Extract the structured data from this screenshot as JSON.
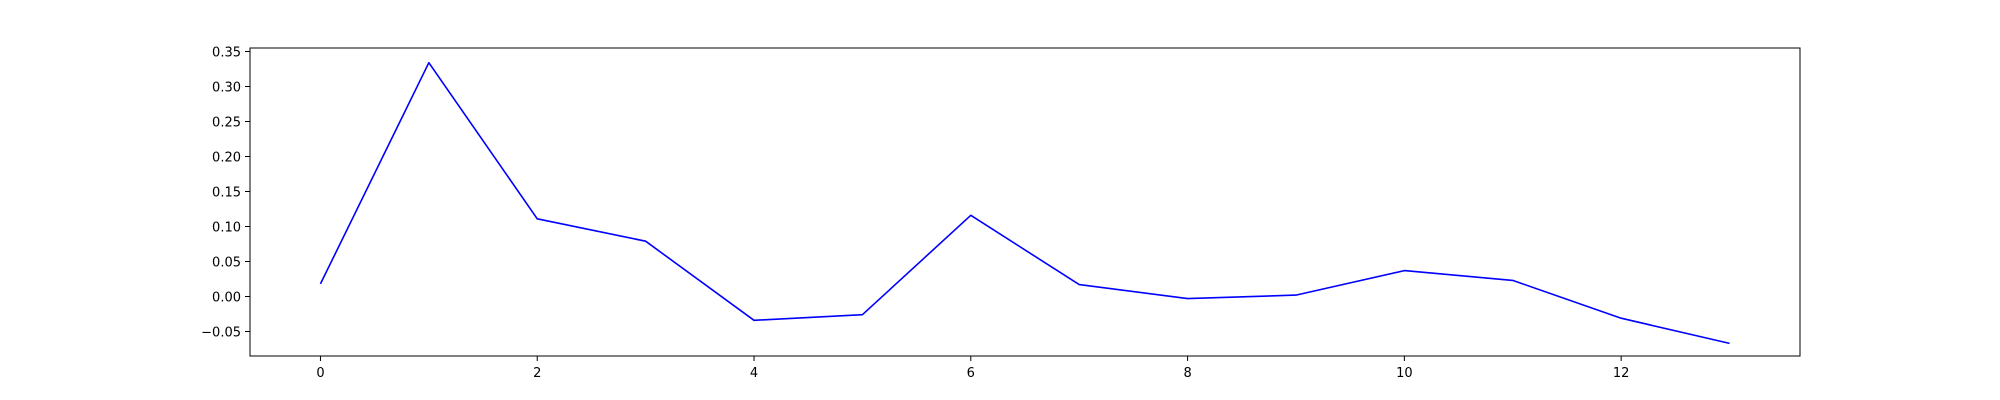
{
  "chart_data": {
    "type": "line",
    "title": "",
    "xlabel": "",
    "ylabel": "",
    "xlim": [
      -0.65,
      13.65
    ],
    "ylim": [
      -0.085,
      0.355
    ],
    "xticks": [
      0,
      2,
      4,
      6,
      8,
      10,
      12
    ],
    "xtick_labels": [
      "0",
      "2",
      "4",
      "6",
      "8",
      "10",
      "12"
    ],
    "yticks": [
      -0.05,
      0.0,
      0.05,
      0.1,
      0.15,
      0.2,
      0.25,
      0.3,
      0.35
    ],
    "ytick_labels": [
      "−0.05",
      "0.00",
      "0.05",
      "0.10",
      "0.15",
      "0.20",
      "0.25",
      "0.30",
      "0.35"
    ],
    "grid": false,
    "legend": false,
    "series": [
      {
        "color": "#0000ff",
        "x": [
          0,
          1,
          2,
          3,
          4,
          5,
          6,
          7,
          8,
          9,
          10,
          11,
          12,
          13
        ],
        "y": [
          0.018,
          0.334,
          0.111,
          0.079,
          -0.034,
          -0.026,
          0.116,
          0.017,
          -0.003,
          0.002,
          0.037,
          0.023,
          -0.031,
          -0.067
        ]
      }
    ]
  }
}
